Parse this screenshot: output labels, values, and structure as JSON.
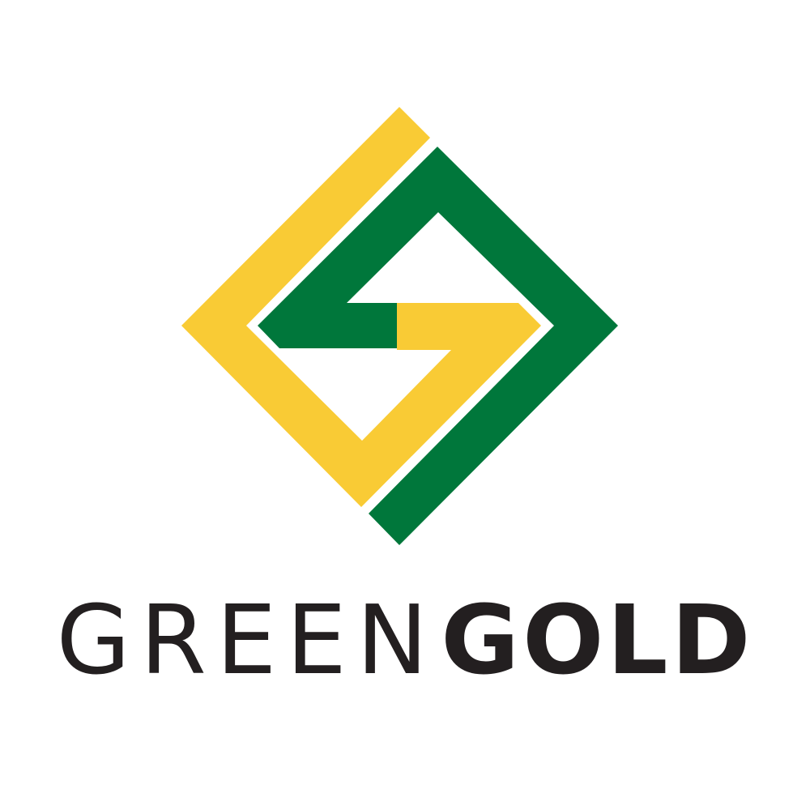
{
  "logo": {
    "brand_light": "GREEN",
    "brand_bold": "GOLD",
    "colors": {
      "gold": "#f9cb35",
      "green": "#00773b",
      "text": "#231f20",
      "background": "#ffffff"
    }
  }
}
